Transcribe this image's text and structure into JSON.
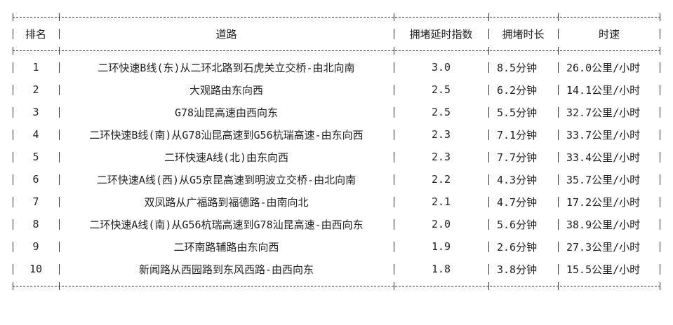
{
  "headers": [
    "排名",
    "道路",
    "拥堵延时指数",
    "拥堵时长",
    "时速"
  ],
  "rows": [
    {
      "rank": "1",
      "road": "二环快速B线(东)从二环北路到石虎关立交桥-由北向南",
      "index": "3.0",
      "duration": "8.5分钟",
      "speed": "26.0公里/小时"
    },
    {
      "rank": "2",
      "road": "大观路由东向西",
      "index": "2.5",
      "duration": "6.2分钟",
      "speed": "14.1公里/小时"
    },
    {
      "rank": "3",
      "road": "G78汕昆高速由西向东",
      "index": "2.5",
      "duration": "5.5分钟",
      "speed": "32.7公里/小时"
    },
    {
      "rank": "4",
      "road": "二环快速B线(南)从G78汕昆高速到G56杭瑞高速-由东向西",
      "index": "2.3",
      "duration": "7.1分钟",
      "speed": "33.7公里/小时"
    },
    {
      "rank": "5",
      "road": "二环快速A线(北)由东向西",
      "index": "2.3",
      "duration": "7.7分钟",
      "speed": "33.4公里/小时"
    },
    {
      "rank": "6",
      "road": "二环快速A线(西)从G5京昆高速到明波立交桥-由北向南",
      "index": "2.2",
      "duration": "4.3分钟",
      "speed": "35.7公里/小时"
    },
    {
      "rank": "7",
      "road": "双凤路从广福路到福德路-由南向北",
      "index": "2.1",
      "duration": "4.7分钟",
      "speed": "17.2公里/小时"
    },
    {
      "rank": "8",
      "road": "二环快速A线(南)从G56杭瑞高速到G78汕昆高速-由西向东",
      "index": "2.0",
      "duration": "5.6分钟",
      "speed": "38.9公里/小时"
    },
    {
      "rank": "9",
      "road": "二环南路辅路由东向西",
      "index": "1.9",
      "duration": "2.6分钟",
      "speed": "27.3公里/小时"
    },
    {
      "rank": "10",
      "road": "新闻路从西园路到东风西路-由西向东",
      "index": "1.8",
      "duration": "3.8分钟",
      "speed": "15.5公里/小时"
    }
  ]
}
